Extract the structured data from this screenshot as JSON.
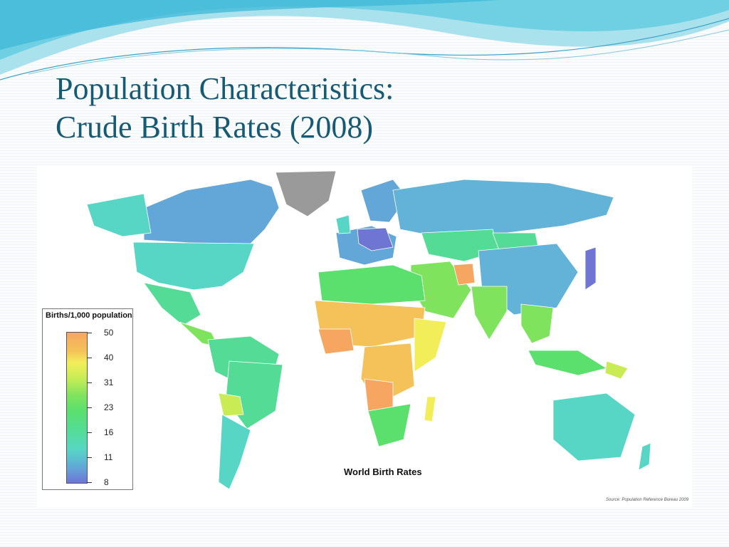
{
  "slide": {
    "title_line1": "Population Characteristics:",
    "title_line2": "Crude Birth Rates (2008)"
  },
  "map": {
    "title": "World Birth Rates",
    "source": "Source: Population Reference Bureau 2009",
    "legend_title": "Births/1,000 population",
    "legend_ticks": [
      "50",
      "40",
      "31",
      "23",
      "16",
      "11",
      "8"
    ],
    "legend_colors": [
      "#f7a661",
      "#f2ee5a",
      "#7fe35e",
      "#5be06e",
      "#54dc97",
      "#57d6c6",
      "#6e75d2"
    ],
    "no_data_color": "#9a9a9a"
  }
}
